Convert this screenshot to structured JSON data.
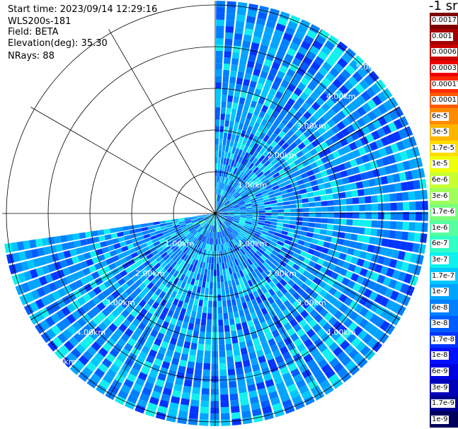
{
  "header": {
    "start_time": "Start time: 2023/09/14 12:29:16",
    "instrument": "WLS200s-181",
    "field": "Field: BETA",
    "elevation": "Elevation(deg): 35.30",
    "nrays": "NRays: 88"
  },
  "colorbar": {
    "unit_label": "-1 sr",
    "levels": [
      {
        "label": "0.0017",
        "color": "#7f0000"
      },
      {
        "label": "0.001",
        "color": "#a50000"
      },
      {
        "label": "0.0006",
        "color": "#c80000"
      },
      {
        "label": "0.0003",
        "color": "#ee0000"
      },
      {
        "label": "0.00017",
        "color": "#ff2a00"
      },
      {
        "label": "0.0001",
        "color": "#ff5a00"
      },
      {
        "label": "6e-5",
        "color": "#ff8a00"
      },
      {
        "label": "3e-5",
        "color": "#ffb400"
      },
      {
        "label": "1.7e-5",
        "color": "#ffdc00"
      },
      {
        "label": "1e-5",
        "color": "#f0ff0a"
      },
      {
        "label": "6e-6",
        "color": "#c8ff32"
      },
      {
        "label": "3e-6",
        "color": "#a0ff5a"
      },
      {
        "label": "1.7e-6",
        "color": "#7aff7d"
      },
      {
        "label": "1e-6",
        "color": "#55ffa0"
      },
      {
        "label": "6e-7",
        "color": "#32ffc8"
      },
      {
        "label": "3e-7",
        "color": "#10f0ee"
      },
      {
        "label": "1.7e-7",
        "color": "#00c8ff"
      },
      {
        "label": "1e-7",
        "color": "#00a4ff"
      },
      {
        "label": "6e-8",
        "color": "#0080ff"
      },
      {
        "label": "3e-8",
        "color": "#005cff"
      },
      {
        "label": "1.7e-8",
        "color": "#0034ff"
      },
      {
        "label": "1e-8",
        "color": "#0010ff"
      },
      {
        "label": "6e-9",
        "color": "#0000e0"
      },
      {
        "label": "3e-9",
        "color": "#0000b8"
      },
      {
        "label": "1.7e-9",
        "color": "#000090"
      },
      {
        "label": "1e-9",
        "color": "#00005c"
      }
    ]
  },
  "chart_data": {
    "type": "heatmap",
    "projection": "polar (PPI scan)",
    "field": "BETA",
    "elevation_deg": 35.3,
    "nrays": 88,
    "azimuth_coverage_deg": [
      0,
      262
    ],
    "range_rings_km": [
      1,
      2,
      3,
      4,
      5
    ],
    "range_ring_labels": [
      "1.00km",
      "2.00km",
      "3.00km",
      "4.00km",
      "5.00km"
    ],
    "spoke_interval_deg": 30,
    "max_range_km": 5.1,
    "value_range": [
      "1e-9",
      "0.0017"
    ],
    "dominant_values": "mostly 1.7e-8 to 6e-7 (blue to cyan)"
  }
}
